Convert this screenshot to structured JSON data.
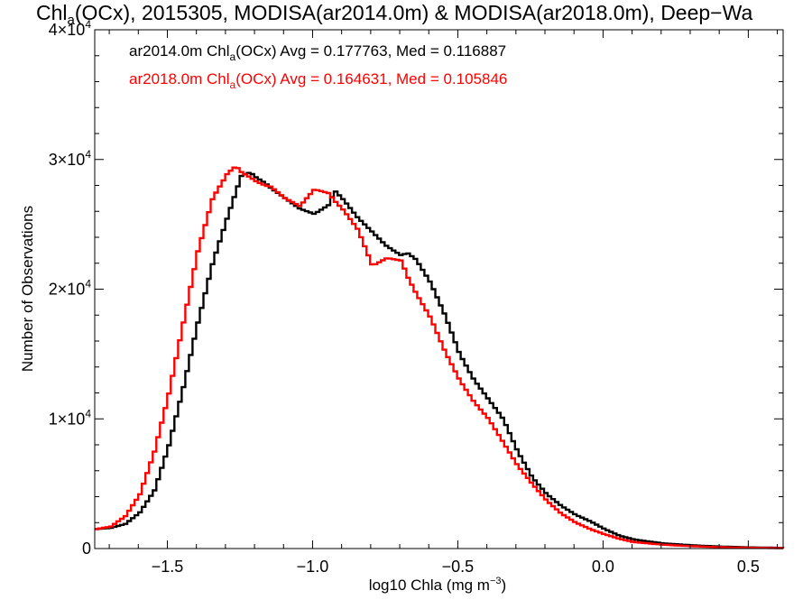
{
  "chart_data": {
    "type": "line",
    "title_parts": [
      "Chl",
      "a",
      "(OCx), 2015305, MODISA(ar2014.0m) & MODISA(ar2018.0m), Deep−Wa"
    ],
    "xlabel_parts": [
      "log10 Chla (mg m",
      "−3",
      ")"
    ],
    "ylabel": "Number of Observations",
    "xlim": [
      -1.75,
      0.62
    ],
    "ylim": [
      0,
      40000
    ],
    "x_ticks": [
      {
        "value": -1.5,
        "label": "−1.5"
      },
      {
        "value": -1.0,
        "label": "−1.0"
      },
      {
        "value": -0.5,
        "label": "−0.5"
      },
      {
        "value": 0.0,
        "label": "0.0"
      },
      {
        "value": 0.5,
        "label": "0.5"
      }
    ],
    "y_ticks": [
      {
        "value": 0,
        "base": "0",
        "exp": ""
      },
      {
        "value": 10000,
        "base": "1×10",
        "exp": "4"
      },
      {
        "value": 20000,
        "base": "2×10",
        "exp": "4"
      },
      {
        "value": 30000,
        "base": "3×10",
        "exp": "4"
      },
      {
        "value": 40000,
        "base": "4×10",
        "exp": "4"
      }
    ],
    "legend": [
      {
        "parts": [
          "ar2014.0m Chl",
          "a",
          "(OCx) Avg = 0.177763, Med = 0.116887"
        ],
        "color": "#000000"
      },
      {
        "parts": [
          "ar2018.0m Chl",
          "a",
          "(OCx) Avg = 0.164631, Med = 0.105846"
        ],
        "color": "#ff0000"
      }
    ],
    "series": [
      {
        "color": "#000000",
        "x": [
          -1.75,
          -1.7,
          -1.65,
          -1.6,
          -1.55,
          -1.5,
          -1.45,
          -1.4,
          -1.35,
          -1.3,
          -1.27,
          -1.25,
          -1.22,
          -1.2,
          -1.17,
          -1.15,
          -1.1,
          -1.05,
          -1.0,
          -0.95,
          -0.93,
          -0.9,
          -0.85,
          -0.8,
          -0.75,
          -0.7,
          -0.68,
          -0.65,
          -0.6,
          -0.55,
          -0.5,
          -0.45,
          -0.4,
          -0.35,
          -0.3,
          -0.25,
          -0.2,
          -0.15,
          -0.1,
          -0.05,
          0.0,
          0.05,
          0.1,
          0.2,
          0.3,
          0.4,
          0.5,
          0.62
        ],
        "y": [
          1500,
          1600,
          1900,
          2800,
          4500,
          8000,
          12500,
          17500,
          22000,
          25500,
          27500,
          28800,
          29000,
          28600,
          28200,
          27800,
          27000,
          26200,
          25800,
          26500,
          27600,
          26900,
          25500,
          24400,
          23300,
          22600,
          22800,
          22300,
          20500,
          18000,
          15000,
          13000,
          11500,
          10000,
          7500,
          5500,
          4200,
          3300,
          2600,
          2100,
          1500,
          1000,
          700,
          400,
          250,
          150,
          90,
          50
        ]
      },
      {
        "color": "#ff0000",
        "x": [
          -1.75,
          -1.7,
          -1.65,
          -1.6,
          -1.55,
          -1.5,
          -1.45,
          -1.4,
          -1.35,
          -1.3,
          -1.27,
          -1.25,
          -1.22,
          -1.2,
          -1.17,
          -1.15,
          -1.1,
          -1.05,
          -1.0,
          -0.95,
          -0.93,
          -0.9,
          -0.85,
          -0.8,
          -0.75,
          -0.7,
          -0.68,
          -0.65,
          -0.6,
          -0.55,
          -0.5,
          -0.45,
          -0.4,
          -0.35,
          -0.3,
          -0.25,
          -0.2,
          -0.15,
          -0.1,
          -0.05,
          0.0,
          0.05,
          0.1,
          0.2,
          0.3,
          0.4,
          0.5,
          0.62
        ],
        "y": [
          1500,
          1700,
          2500,
          4200,
          7500,
          12000,
          17500,
          23000,
          27000,
          28900,
          29500,
          29000,
          28600,
          28300,
          28000,
          27900,
          27000,
          26400,
          27700,
          27400,
          26800,
          26100,
          24600,
          21800,
          22400,
          22200,
          21000,
          19700,
          17800,
          15200,
          13000,
          11300,
          10000,
          8200,
          6400,
          5000,
          3700,
          2700,
          2000,
          1500,
          1100,
          750,
          500,
          300,
          180,
          100,
          60,
          30
        ]
      }
    ]
  }
}
